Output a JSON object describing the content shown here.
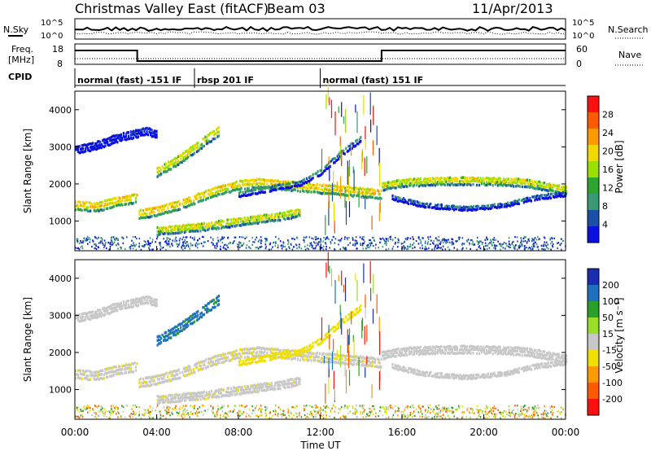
{
  "header": {
    "title": "Christmas Valley East (fitACF)",
    "beam": "Beam 03",
    "date": "11/Apr/2013"
  },
  "top_panels": {
    "nsky_label": "N.Sky",
    "nsearch_label": "N.Search",
    "freq_label_1": "Freq.",
    "freq_label_2": "[MHz]",
    "nave_label": "Nave",
    "cpid_label": "CPID",
    "noise_axis_left": [
      "10^5",
      "10^0"
    ],
    "noise_axis_right": [
      "10^5",
      "10^0"
    ],
    "freq_axis_left": [
      "18",
      "8"
    ],
    "freq_axis_right": [
      "60",
      "0"
    ]
  },
  "cpid_segments": [
    {
      "label": "normal (fast) -151 IF",
      "start_h": 0.0,
      "end_h": 5.85
    },
    {
      "label": "rbsp 201 IF",
      "start_h": 5.85,
      "end_h": 12.0
    },
    {
      "label": "normal (fast) 151 IF",
      "start_h": 12.0,
      "end_h": 24.0
    }
  ],
  "axes": {
    "ylabel": "Slant Range [km]",
    "xlabel": "Time UT",
    "x_ticks": [
      "00:00",
      "04:00",
      "08:00",
      "12:00",
      "16:00",
      "20:00",
      "00:00"
    ],
    "y_ticks": [
      "1000",
      "2000",
      "3000",
      "4000"
    ]
  },
  "colorbars": {
    "power": {
      "label": "Power [dB]",
      "ticks": [
        "28",
        "24",
        "20",
        "16",
        "12",
        "8",
        "4"
      ],
      "colors": [
        "#ff1010",
        "#ff5a00",
        "#ff9a00",
        "#f0d800",
        "#9ce000",
        "#2ea52e",
        "#3a9a78",
        "#1a4fa8",
        "#0b10e0"
      ]
    },
    "velocity": {
      "label": "Velocity [m s⁻¹]",
      "ticks": [
        "200",
        "100",
        "50",
        "15",
        "-15",
        "-50",
        "-100",
        "-200"
      ],
      "colors": [
        "#1a2db0",
        "#2070c0",
        "#2aa02a",
        "#9adf2a",
        "#c8c8c8",
        "#f0e000",
        "#ff9a00",
        "#ff5a00",
        "#ff1010"
      ]
    }
  },
  "chart_data": {
    "type": "heatmap",
    "title": "Christmas Valley East (fitACF)",
    "xlabel": "Time UT",
    "ylabel": "Slant Range [km]",
    "xlim": [
      0,
      24
    ],
    "ylim": [
      200,
      4500
    ],
    "scatter_bands": [
      {
        "name": "band-a",
        "points": [
          [
            0,
            1500
          ],
          [
            1,
            1450
          ],
          [
            2,
            1600
          ],
          [
            3,
            1700
          ],
          [
            3.05,
            1250
          ],
          [
            4,
            1350
          ],
          [
            5,
            1500
          ],
          [
            6,
            1700
          ],
          [
            7,
            1900
          ],
          [
            8,
            2050
          ],
          [
            9,
            2100
          ],
          [
            10,
            2050
          ],
          [
            11,
            2000
          ],
          [
            12,
            1950
          ],
          [
            13,
            1900
          ],
          [
            14,
            1850
          ],
          [
            15,
            1800
          ]
        ],
        "width_km": 300,
        "power_db": 24,
        "velocity": -15
      },
      {
        "name": "band-b",
        "points": [
          [
            15,
            2000
          ],
          [
            16,
            2100
          ],
          [
            18,
            2150
          ],
          [
            20,
            2150
          ],
          [
            22,
            2100
          ],
          [
            24,
            1900
          ]
        ],
        "width_km": 250,
        "power_db": 22,
        "velocity": 0
      },
      {
        "name": "band-c",
        "points": [
          [
            15.5,
            1700
          ],
          [
            17,
            1500
          ],
          [
            19,
            1400
          ],
          [
            21,
            1500
          ],
          [
            22.5,
            1700
          ],
          [
            24,
            1800
          ]
        ],
        "width_km": 150,
        "power_db": 8,
        "velocity": 0
      },
      {
        "name": "band-d",
        "points": [
          [
            4,
            800
          ],
          [
            6,
            900
          ],
          [
            8,
            1050
          ],
          [
            10,
            1200
          ],
          [
            11,
            1300
          ]
        ],
        "width_km": 250,
        "power_db": 22,
        "velocity": -10
      },
      {
        "name": "band-e",
        "points": [
          [
            0,
            3000
          ],
          [
            1,
            3100
          ],
          [
            2,
            3300
          ],
          [
            3.5,
            3500
          ],
          [
            4,
            3400
          ]
        ],
        "width_km": 250,
        "power_db": 6,
        "velocity": 0
      },
      {
        "name": "band-f",
        "points": [
          [
            4,
            2400
          ],
          [
            5,
            2700
          ],
          [
            6,
            3100
          ],
          [
            7,
            3500
          ]
        ],
        "width_km": 300,
        "power_db": 22,
        "velocity": 150
      },
      {
        "name": "band-g",
        "points": [
          [
            8,
            1800
          ],
          [
            9,
            1900
          ],
          [
            10,
            2000
          ],
          [
            11,
            2100
          ],
          [
            12,
            2400
          ],
          [
            13,
            2900
          ],
          [
            14,
            3300
          ]
        ],
        "width_km": 200,
        "power_db": 10,
        "velocity": -60
      }
    ]
  }
}
